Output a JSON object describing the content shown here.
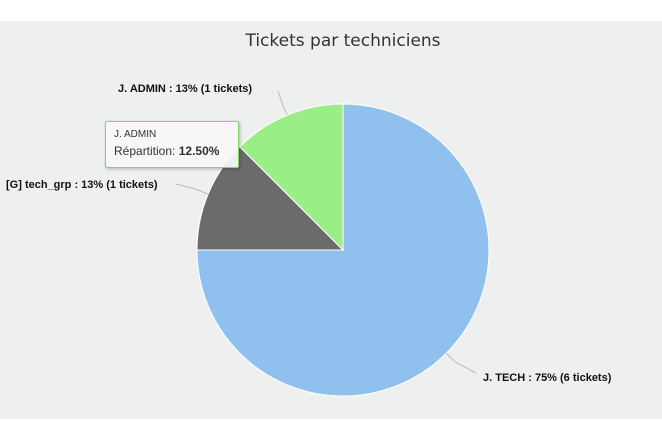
{
  "chart_data": {
    "type": "pie",
    "title": "Tickets par techniciens",
    "slices": [
      {
        "name": "J. TECH",
        "value": 6,
        "percent": 75,
        "label": "J. TECH : 75% (6 tickets)",
        "color": "#90c0ed"
      },
      {
        "name": "[G] tech_grp",
        "value": 1,
        "percent": 12.5,
        "label": "[G] tech_grp : 13% (1 tickets)",
        "color": "#6b6b6e"
      },
      {
        "name": "J. ADMIN",
        "value": 1,
        "percent": 12.5,
        "label": "J. ADMIN : 13% (1 tickets)",
        "color": "#9bee86"
      }
    ]
  },
  "tooltip": {
    "name": "J. ADMIN",
    "metric_label": "Répartition:",
    "metric_value": "12.50%",
    "border_color": "#7fd96a"
  }
}
